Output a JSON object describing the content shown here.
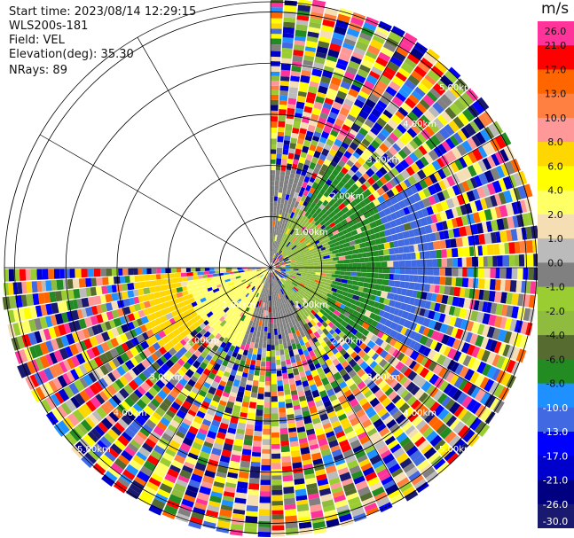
{
  "info": {
    "start_time": "Start time: 2023/08/14 12:29:15",
    "instrument": "WLS200s-181",
    "field": "Field: VEL",
    "elevation": "Elevation(deg): 35.30",
    "nrays": "NRays: 89"
  },
  "colorbar": {
    "unit": "m/s",
    "labels": [
      "26.0",
      "21.0",
      "17.0",
      "13.0",
      "10.0",
      "8.0",
      "6.0",
      "4.0",
      "2.0",
      "1.0",
      "0.0",
      "-1.0",
      "-2.0",
      "-4.0",
      "-6.0",
      "-8.0",
      "-10.0",
      "-13.0",
      "-17.0",
      "-21.0",
      "-26.0",
      "-30.0"
    ],
    "colors": [
      "#ff3399",
      "#ff0000",
      "#ff6600",
      "#ff8040",
      "#ff9999",
      "#ffd700",
      "#ffff00",
      "#ffff66",
      "#f5deb3",
      "#bbbbbb",
      "#808080",
      "#9acd32",
      "#8fbc3f",
      "#556b2f",
      "#228b22",
      "#1e90ff",
      "#4169e1",
      "#0000ff",
      "#0000cd",
      "#000080",
      "#191970"
    ]
  },
  "chart_data": {
    "type": "heatmap",
    "field": "VEL",
    "range_rings_km": [
      1.0,
      2.0,
      3.0,
      4.0,
      5.0
    ],
    "ring_labels": [
      "1.00km",
      "2.00km",
      "3.00km",
      "4.00km",
      "5.00km"
    ],
    "max_range_km": 5.2,
    "azimuth_coverage_deg": [
      0,
      270
    ],
    "regions": [
      {
        "sector_deg": [
          0,
          20
        ],
        "range_km": [
          0.1,
          1.9
        ],
        "value": 0.0
      },
      {
        "sector_deg": [
          20,
          150
        ],
        "range_km": [
          0.3,
          1.2
        ],
        "value": -2.0
      },
      {
        "sector_deg": [
          30,
          130
        ],
        "range_km": [
          1.2,
          2.3
        ],
        "value": -6.0
      },
      {
        "sector_deg": [
          60,
          120
        ],
        "range_km": [
          2.3,
          3.2
        ],
        "value": -10.0
      },
      {
        "sector_deg": [
          150,
          200
        ],
        "range_km": [
          0.1,
          1.5
        ],
        "value": 0.0
      },
      {
        "sector_deg": [
          200,
          260
        ],
        "range_km": [
          0.1,
          1.6
        ],
        "value": 4.0
      },
      {
        "sector_deg": [
          230,
          265
        ],
        "range_km": [
          1.6,
          2.6
        ],
        "value": 8.0
      }
    ],
    "far_field": "noise (all colors)",
    "xlim_km": [
      -5.2,
      5.2
    ],
    "ylim_km": [
      -5.2,
      5.2
    ]
  }
}
